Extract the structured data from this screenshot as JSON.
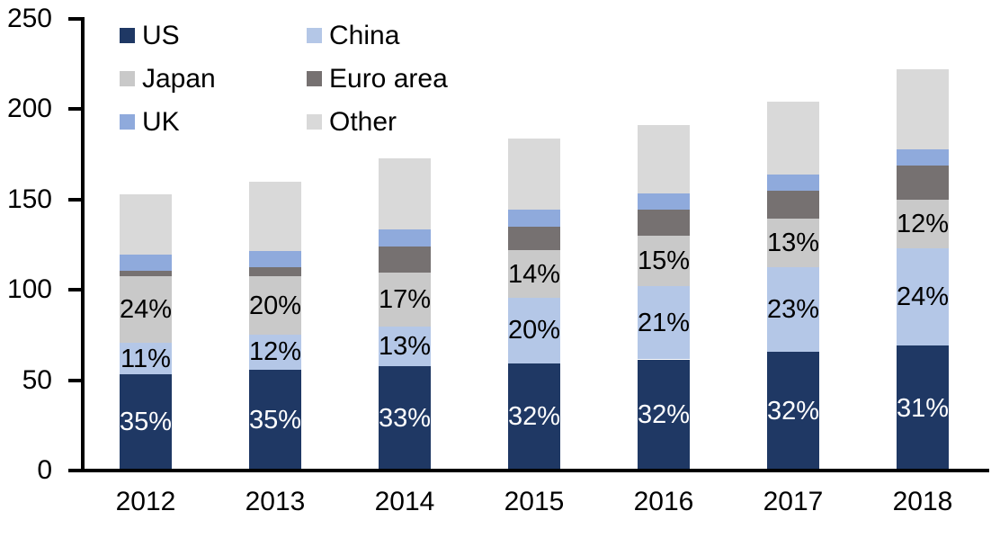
{
  "chart_data": {
    "type": "bar",
    "stacked": true,
    "title": "",
    "xlabel": "",
    "ylabel": "",
    "categories": [
      "2012",
      "2013",
      "2014",
      "2015",
      "2016",
      "2017",
      "2018"
    ],
    "series": [
      {
        "name": "US",
        "color": "#1f3864",
        "values": [
          53.5,
          56,
          58,
          59.5,
          61.5,
          65.5,
          69
        ],
        "percent_labels": [
          "35%",
          "35%",
          "33%",
          "32%",
          "32%",
          "32%",
          "31%"
        ],
        "label_color": "#ffffff"
      },
      {
        "name": "China",
        "color": "#b4c7e7",
        "values": [
          17,
          19,
          21.5,
          36,
          40.5,
          47,
          54
        ],
        "percent_labels": [
          "11%",
          "12%",
          "13%",
          "20%",
          "21%",
          "23%",
          "24%"
        ],
        "label_color": "#000000"
      },
      {
        "name": "Japan",
        "color": "#c9c9c9",
        "values": [
          37,
          32.5,
          30,
          26.5,
          28,
          27,
          27
        ],
        "percent_labels": [
          "24%",
          "20%",
          "17%",
          "14%",
          "15%",
          "13%",
          "12%"
        ],
        "label_color": "#000000"
      },
      {
        "name": "Euro area",
        "color": "#767171",
        "values": [
          3,
          5,
          14.5,
          13,
          14.5,
          15.5,
          19
        ],
        "percent_labels": null,
        "label_color": null
      },
      {
        "name": "UK",
        "color": "#8faadc",
        "values": [
          9,
          9,
          9.5,
          9.5,
          9,
          9,
          9
        ],
        "percent_labels": null,
        "label_color": null
      },
      {
        "name": "Other",
        "color": "#d9d9d9",
        "values": [
          33.5,
          38.5,
          39.5,
          39.5,
          37.5,
          40,
          44
        ],
        "percent_labels": null,
        "label_color": null
      }
    ],
    "approx_totals": [
      153,
      160,
      173,
      184,
      191,
      204,
      222
    ],
    "ylim": [
      0,
      250
    ],
    "yticks": [
      0,
      50,
      100,
      150,
      200,
      250
    ],
    "grid": "off",
    "legend_position": "top-left",
    "legend_columns": 2,
    "legend_reading_order": [
      "US",
      "China",
      "Japan",
      "Euro area",
      "UK",
      "Other"
    ],
    "axis_color": "#000000",
    "background_color": "#ffffff"
  }
}
